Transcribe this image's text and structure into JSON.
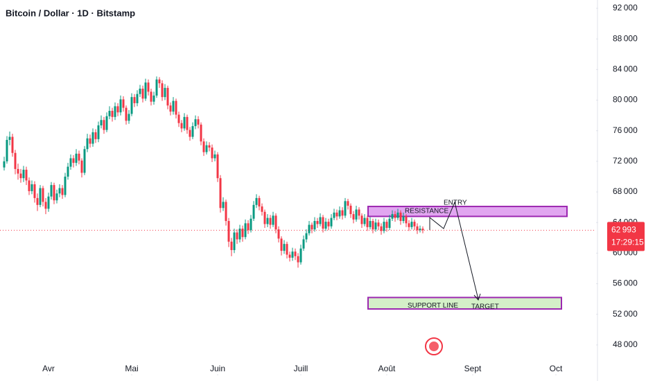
{
  "chart_data": {
    "type": "candlestick",
    "title": "Bitcoin / Dollar · 1D · Bitstamp",
    "up_color": "#089981",
    "down_color": "#f23645",
    "grid": false,
    "xlim": [
      -2.5,
      212.5
    ],
    "xticks": [
      {
        "value": 15,
        "label": "Avr"
      },
      {
        "value": 45,
        "label": "Mai"
      },
      {
        "value": 76,
        "label": "Juin"
      },
      {
        "value": 106,
        "label": "Juill"
      },
      {
        "value": 137,
        "label": "Août"
      },
      {
        "value": 168,
        "label": "Sept"
      },
      {
        "value": 198,
        "label": "Oct"
      }
    ],
    "ylim": [
      46000,
      93090
    ],
    "yticks": [
      {
        "value": 48000,
        "label": "48 000"
      },
      {
        "value": 52000,
        "label": "52 000"
      },
      {
        "value": 56000,
        "label": "56 000"
      },
      {
        "value": 60000,
        "label": "60 000"
      },
      {
        "value": 64000,
        "label": "64 000"
      },
      {
        "value": 68000,
        "label": "68 000"
      },
      {
        "value": 72000,
        "label": "72 000"
      },
      {
        "value": 76000,
        "label": "76 000"
      },
      {
        "value": 80000,
        "label": "80 000"
      },
      {
        "value": 84000,
        "label": "84 000"
      },
      {
        "value": 88000,
        "label": "88 000"
      },
      {
        "value": 92000,
        "label": "92 000"
      }
    ],
    "last_price": {
      "value": 62993,
      "label": "62 993"
    },
    "countdown": "17:29:15",
    "zones": [
      {
        "label": "RESISTANCE",
        "low": 64800,
        "high": 66100,
        "color": "#e1a6f0",
        "border": "#9c27b0"
      },
      {
        "label": "SUPPORT LINE",
        "low": 52700,
        "high": 54200,
        "color": "#d4f0c8",
        "border": "#9c27b0"
      }
    ],
    "annotations": [
      "ENTRY",
      "TARGET"
    ],
    "x": [
      -1,
      0,
      1,
      2,
      3,
      4,
      5,
      6,
      7,
      8,
      9,
      10,
      11,
      12,
      13,
      14,
      15,
      16,
      17,
      18,
      19,
      20,
      21,
      22,
      23,
      24,
      25,
      26,
      27,
      28,
      29,
      30,
      31,
      32,
      33,
      34,
      35,
      36,
      37,
      38,
      39,
      40,
      41,
      42,
      43,
      44,
      45,
      46,
      47,
      48,
      49,
      50,
      51,
      52,
      53,
      54,
      55,
      56,
      57,
      58,
      59,
      60,
      61,
      62,
      63,
      64,
      65,
      66,
      67,
      68,
      69,
      70,
      71,
      72,
      73,
      74,
      75,
      76,
      77,
      78,
      79,
      80,
      81,
      82,
      83,
      84,
      85,
      86,
      87,
      88,
      89,
      90,
      91,
      92,
      93,
      94,
      95,
      96,
      97,
      98,
      99,
      100,
      101,
      102,
      103,
      104,
      105,
      106,
      107,
      108,
      109,
      110,
      111,
      112,
      113,
      114,
      115,
      116,
      117,
      118,
      119,
      120,
      121,
      122,
      123,
      124,
      125,
      126,
      127,
      128,
      129,
      130,
      131,
      132,
      133,
      134,
      135,
      136,
      137,
      138,
      139,
      140,
      141,
      142,
      143,
      144,
      145,
      146,
      147,
      148,
      149,
      150
    ],
    "ohlc": [
      [
        71200,
        72600,
        70800,
        72000
      ],
      [
        72000,
        75300,
        71700,
        74800
      ],
      [
        74800,
        75900,
        74100,
        75200
      ],
      [
        75200,
        75600,
        72600,
        73100
      ],
      [
        73100,
        73500,
        70300,
        71000
      ],
      [
        71000,
        71700,
        69600,
        70400
      ],
      [
        70400,
        71000,
        69200,
        69800
      ],
      [
        69800,
        71400,
        69300,
        70900
      ],
      [
        70900,
        71300,
        68900,
        69500
      ],
      [
        69500,
        69900,
        67600,
        68100
      ],
      [
        68100,
        69500,
        67700,
        69000
      ],
      [
        69000,
        69400,
        66600,
        67200
      ],
      [
        67200,
        67800,
        65500,
        66300
      ],
      [
        66300,
        68900,
        66000,
        68500
      ],
      [
        68500,
        68800,
        66100,
        66700
      ],
      [
        66700,
        67200,
        65100,
        65800
      ],
      [
        65800,
        67900,
        65400,
        67400
      ],
      [
        67400,
        69300,
        67000,
        68900
      ],
      [
        68900,
        69200,
        66400,
        66900
      ],
      [
        66900,
        68300,
        66500,
        67800
      ],
      [
        67800,
        69000,
        67300,
        68500
      ],
      [
        68500,
        68900,
        67100,
        67600
      ],
      [
        67600,
        70500,
        67300,
        70000
      ],
      [
        70000,
        71800,
        69600,
        71300
      ],
      [
        71300,
        72900,
        70900,
        72400
      ],
      [
        72400,
        72800,
        71200,
        71800
      ],
      [
        71800,
        73600,
        71400,
        73000
      ],
      [
        73000,
        73400,
        71600,
        72100
      ],
      [
        72100,
        72400,
        69900,
        70500
      ],
      [
        70500,
        74000,
        70200,
        73600
      ],
      [
        73600,
        75600,
        73200,
        75000
      ],
      [
        75000,
        75500,
        73800,
        74300
      ],
      [
        74300,
        76300,
        73900,
        75800
      ],
      [
        75800,
        76200,
        74400,
        74900
      ],
      [
        74900,
        77200,
        74500,
        76700
      ],
      [
        76700,
        78000,
        76300,
        77400
      ],
      [
        77400,
        77800,
        75600,
        76100
      ],
      [
        76100,
        78400,
        75800,
        77900
      ],
      [
        77900,
        79200,
        77500,
        78600
      ],
      [
        78600,
        79000,
        77200,
        77800
      ],
      [
        77800,
        79700,
        77400,
        79200
      ],
      [
        79200,
        79600,
        77900,
        78400
      ],
      [
        78400,
        80600,
        78000,
        80100
      ],
      [
        80100,
        80500,
        78500,
        79000
      ],
      [
        79000,
        79300,
        76800,
        77300
      ],
      [
        77300,
        78700,
        76900,
        78200
      ],
      [
        78200,
        80900,
        77900,
        80400
      ],
      [
        80400,
        80800,
        79100,
        79600
      ],
      [
        79600,
        81300,
        79200,
        80800
      ],
      [
        80800,
        82000,
        80400,
        81500
      ],
      [
        81500,
        81900,
        79700,
        80200
      ],
      [
        80200,
        82800,
        79900,
        82300
      ],
      [
        82300,
        82700,
        80600,
        81100
      ],
      [
        81100,
        81500,
        79300,
        79800
      ],
      [
        79800,
        81100,
        79400,
        80600
      ],
      [
        80600,
        83100,
        80300,
        82700
      ],
      [
        82700,
        83000,
        81600,
        82200
      ],
      [
        82200,
        82600,
        79900,
        80400
      ],
      [
        80400,
        82100,
        80000,
        81600
      ],
      [
        81600,
        81900,
        78800,
        79300
      ],
      [
        79300,
        79700,
        78000,
        78500
      ],
      [
        78500,
        80400,
        78100,
        79900
      ],
      [
        79900,
        80200,
        77600,
        78100
      ],
      [
        78100,
        78500,
        76500,
        77000
      ],
      [
        77000,
        77400,
        75800,
        76300
      ],
      [
        76300,
        78300,
        76000,
        77800
      ],
      [
        77800,
        78100,
        75600,
        76100
      ],
      [
        76100,
        76500,
        74700,
        75200
      ],
      [
        75200,
        77100,
        74900,
        76600
      ],
      [
        76600,
        78000,
        76200,
        77500
      ],
      [
        77500,
        77900,
        76300,
        76800
      ],
      [
        76800,
        77100,
        74100,
        74600
      ],
      [
        74600,
        75000,
        72700,
        73200
      ],
      [
        73200,
        74600,
        72900,
        74100
      ],
      [
        74100,
        74500,
        73300,
        73800
      ],
      [
        73800,
        74200,
        71900,
        72400
      ],
      [
        72400,
        73400,
        72000,
        72900
      ],
      [
        72900,
        73200,
        69300,
        69800
      ],
      [
        69800,
        70200,
        65300,
        65900
      ],
      [
        65900,
        67300,
        65500,
        66700
      ],
      [
        66700,
        67000,
        63600,
        64200
      ],
      [
        64200,
        64600,
        60800,
        61500
      ],
      [
        61500,
        62000,
        59600,
        60400
      ],
      [
        60400,
        63200,
        60000,
        62700
      ],
      [
        62700,
        63100,
        61200,
        61800
      ],
      [
        61800,
        63700,
        61400,
        63200
      ],
      [
        63200,
        63600,
        61500,
        62100
      ],
      [
        62100,
        64400,
        61800,
        63900
      ],
      [
        63900,
        64300,
        62500,
        63000
      ],
      [
        63000,
        65000,
        62700,
        64500
      ],
      [
        64500,
        66800,
        64200,
        66300
      ],
      [
        66300,
        67700,
        65900,
        67200
      ],
      [
        67200,
        67500,
        65600,
        66100
      ],
      [
        66100,
        66500,
        64900,
        65400
      ],
      [
        65400,
        65700,
        63300,
        63800
      ],
      [
        63800,
        65100,
        63400,
        64600
      ],
      [
        64600,
        65000,
        63200,
        63700
      ],
      [
        63700,
        65400,
        63400,
        64900
      ],
      [
        64900,
        65200,
        62600,
        63100
      ],
      [
        63100,
        63500,
        61400,
        61900
      ],
      [
        61900,
        62200,
        59700,
        60300
      ],
      [
        60300,
        61700,
        59900,
        61200
      ],
      [
        61200,
        61500,
        59300,
        59800
      ],
      [
        59800,
        60200,
        58900,
        59400
      ],
      [
        59400,
        60700,
        59000,
        60200
      ],
      [
        60200,
        60600,
        59100,
        59600
      ],
      [
        59600,
        60000,
        58100,
        58800
      ],
      [
        58800,
        61100,
        58500,
        60600
      ],
      [
        60600,
        62300,
        60300,
        61800
      ],
      [
        61800,
        63100,
        61400,
        62600
      ],
      [
        62600,
        64200,
        62300,
        63700
      ],
      [
        63700,
        64000,
        62600,
        63100
      ],
      [
        63100,
        64700,
        62800,
        64200
      ],
      [
        64200,
        64600,
        63300,
        63800
      ],
      [
        63800,
        65200,
        63500,
        64700
      ],
      [
        64700,
        65000,
        62700,
        63200
      ],
      [
        63200,
        64600,
        62900,
        64100
      ],
      [
        64100,
        64500,
        63000,
        63500
      ],
      [
        63500,
        65100,
        63200,
        64600
      ],
      [
        64600,
        65800,
        64300,
        65300
      ],
      [
        65300,
        65700,
        64300,
        64800
      ],
      [
        64800,
        66100,
        64500,
        65600
      ],
      [
        65600,
        66000,
        64400,
        64900
      ],
      [
        64900,
        67200,
        64600,
        66800
      ],
      [
        66800,
        67100,
        65700,
        66200
      ],
      [
        66200,
        66500,
        64600,
        65100
      ],
      [
        65100,
        65500,
        63900,
        64400
      ],
      [
        64400,
        66200,
        64100,
        65700
      ],
      [
        65700,
        66000,
        64400,
        64900
      ],
      [
        64900,
        65200,
        63300,
        63800
      ],
      [
        63800,
        65100,
        63500,
        64600
      ],
      [
        64600,
        64900,
        62900,
        63400
      ],
      [
        63400,
        64700,
        63100,
        64200
      ],
      [
        64200,
        64500,
        62600,
        63100
      ],
      [
        63100,
        64500,
        62800,
        64000
      ],
      [
        64000,
        64400,
        63000,
        63500
      ],
      [
        63500,
        63900,
        62400,
        62900
      ],
      [
        62900,
        64600,
        62600,
        64100
      ],
      [
        64100,
        64400,
        62800,
        63300
      ],
      [
        63300,
        65000,
        63000,
        64500
      ],
      [
        64500,
        65600,
        64200,
        65100
      ],
      [
        65100,
        65500,
        64100,
        64600
      ],
      [
        64600,
        65800,
        64300,
        65300
      ],
      [
        65300,
        65600,
        63700,
        64200
      ],
      [
        64200,
        65300,
        63900,
        64800
      ],
      [
        64800,
        65100,
        63400,
        63900
      ],
      [
        63900,
        64300,
        62900,
        63400
      ],
      [
        63400,
        64600,
        63100,
        64100
      ],
      [
        64100,
        64400,
        63000,
        63500
      ],
      [
        63500,
        63900,
        62500,
        63000
      ],
      [
        63000,
        63600,
        62700,
        63200
      ],
      [
        63200,
        63500,
        62600,
        62993
      ]
    ]
  }
}
